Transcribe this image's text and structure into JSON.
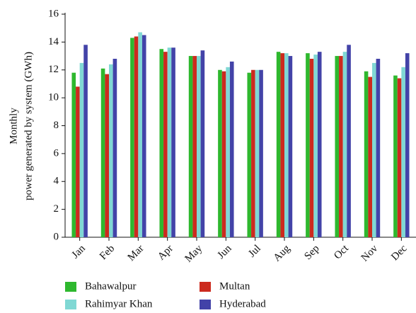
{
  "chart_data": {
    "type": "bar",
    "ylabel": [
      "Monthly",
      "power generated by system (GWh)"
    ],
    "categories": [
      "Jan",
      "Feb",
      "Mar",
      "Apr",
      "May",
      "Jun",
      "Jul",
      "Aug",
      "Sep",
      "Oct",
      "Nov",
      "Dec"
    ],
    "series": [
      {
        "name": "Bahawalpur",
        "color": "#2eb82e",
        "values": [
          11.8,
          12.1,
          14.3,
          13.5,
          13.0,
          12.0,
          11.8,
          13.3,
          13.2,
          13.0,
          11.9,
          11.6
        ]
      },
      {
        "name": "Multan",
        "color": "#cc2a1e",
        "values": [
          10.8,
          11.7,
          14.4,
          13.3,
          13.0,
          11.9,
          12.0,
          13.2,
          12.8,
          13.0,
          11.5,
          11.4
        ]
      },
      {
        "name": "Rahimyar Khan",
        "color": "#80d8d4",
        "values": [
          12.5,
          12.4,
          14.7,
          13.6,
          13.0,
          12.2,
          12.0,
          13.2,
          13.1,
          13.3,
          12.5,
          12.2
        ]
      },
      {
        "name": "Hyderabad",
        "color": "#4343a8",
        "values": [
          13.8,
          12.8,
          14.5,
          13.6,
          13.4,
          12.6,
          12.0,
          13.0,
          13.3,
          13.8,
          12.8,
          13.2
        ]
      }
    ],
    "ylim": [
      0,
      16
    ],
    "yticks": [
      0,
      2,
      4,
      6,
      8,
      10,
      12,
      14,
      16
    ]
  }
}
